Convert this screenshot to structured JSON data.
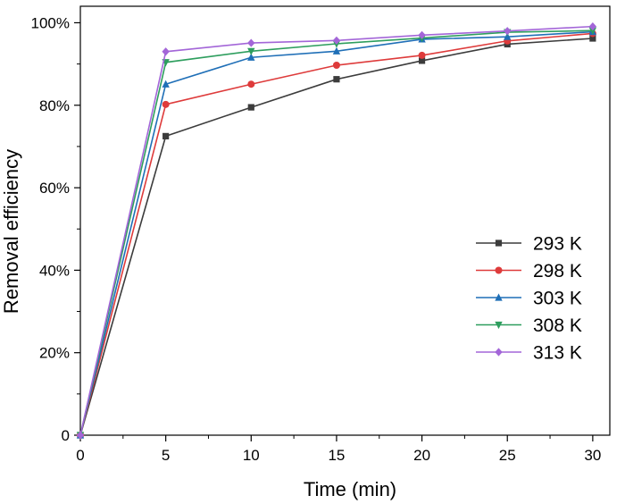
{
  "chart_data": {
    "type": "line",
    "xlabel": "Time (min)",
    "ylabel": "Removal efficiency",
    "xlim": [
      0,
      31
    ],
    "ylim": [
      0,
      104
    ],
    "x_ticks": [
      0,
      5,
      10,
      15,
      20,
      25,
      30
    ],
    "y_ticks": [
      0,
      20,
      40,
      60,
      80,
      100
    ],
    "y_tick_labels": [
      "0",
      "20%",
      "40%",
      "60%",
      "80%",
      "100%"
    ],
    "grid": false,
    "legend_position": "center-right",
    "x": [
      0,
      5,
      10,
      15,
      20,
      25,
      30
    ],
    "series": [
      {
        "name": "293 K",
        "color": "#3c3c3c",
        "marker": "square",
        "values": [
          0,
          72.5,
          79.5,
          86.3,
          90.8,
          94.8,
          96.2
        ]
      },
      {
        "name": "298 K",
        "color": "#de3b3b",
        "marker": "circle",
        "values": [
          0,
          80.2,
          85.1,
          89.7,
          92.1,
          95.6,
          97.4
        ]
      },
      {
        "name": "303 K",
        "color": "#1f6fb7",
        "marker": "triangle-up",
        "values": [
          0,
          85.1,
          91.6,
          93.1,
          96.0,
          96.6,
          97.8
        ]
      },
      {
        "name": "308 K",
        "color": "#2e9e5e",
        "marker": "triangle-down",
        "values": [
          0,
          90.4,
          93.1,
          94.9,
          96.3,
          97.7,
          98.1
        ]
      },
      {
        "name": "313 K",
        "color": "#a366d8",
        "marker": "diamond",
        "values": [
          0,
          93.0,
          95.1,
          95.7,
          97.0,
          98.0,
          99.1
        ]
      }
    ]
  }
}
